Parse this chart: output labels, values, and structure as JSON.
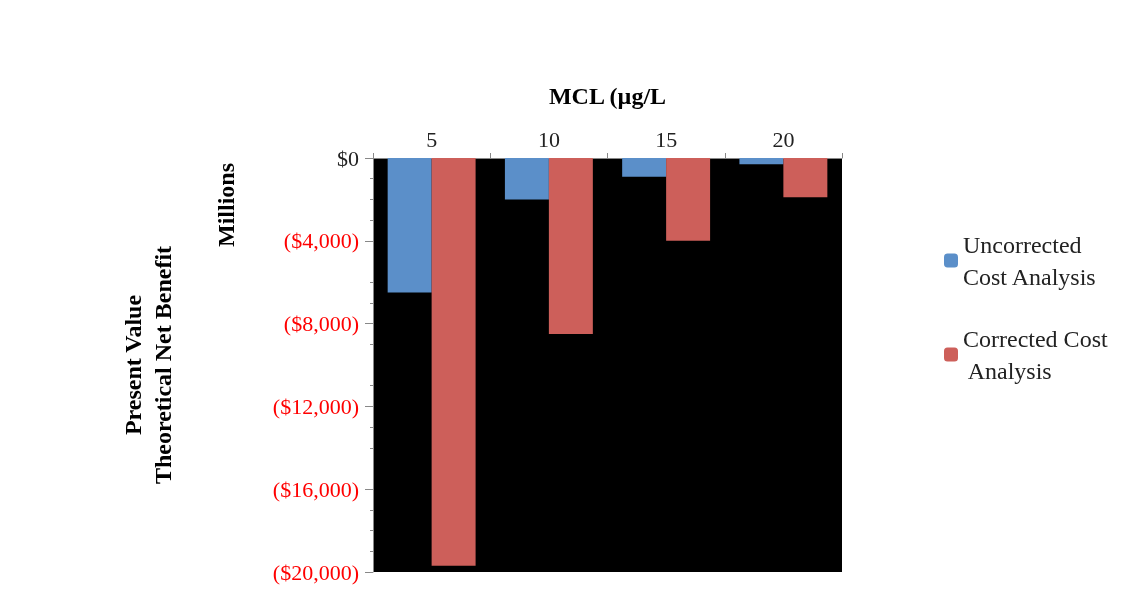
{
  "chart_data": {
    "type": "bar",
    "xlabel": "MCL (µg/L",
    "ylabel": "Present Value\nTheoretical Net Benefit",
    "annotations": [
      "Millions"
    ],
    "categories": [
      "5",
      "10",
      "15",
      "20"
    ],
    "series": [
      {
        "name": "Uncorrected Cost Analysis",
        "color": "#5b8fc9",
        "values": [
          -6500,
          -2000,
          -900,
          -300
        ]
      },
      {
        "name": "Corrected Cost Analysis",
        "color": "#cd5f5a",
        "values": [
          -19700,
          -8500,
          -4000,
          -1900
        ]
      }
    ],
    "ylim": [
      -20000,
      0
    ],
    "yticks": [
      {
        "value": -20000,
        "label": "($20,000)"
      },
      {
        "value": -16000,
        "label": "($16,000)"
      },
      {
        "value": -12000,
        "label": "($12,000)"
      },
      {
        "value": -8000,
        "label": "($8,000)"
      },
      {
        "value": -4000,
        "label": "($4,000)"
      },
      {
        "value": 0,
        "label": "$0"
      }
    ],
    "grid": false,
    "legend": "right"
  }
}
